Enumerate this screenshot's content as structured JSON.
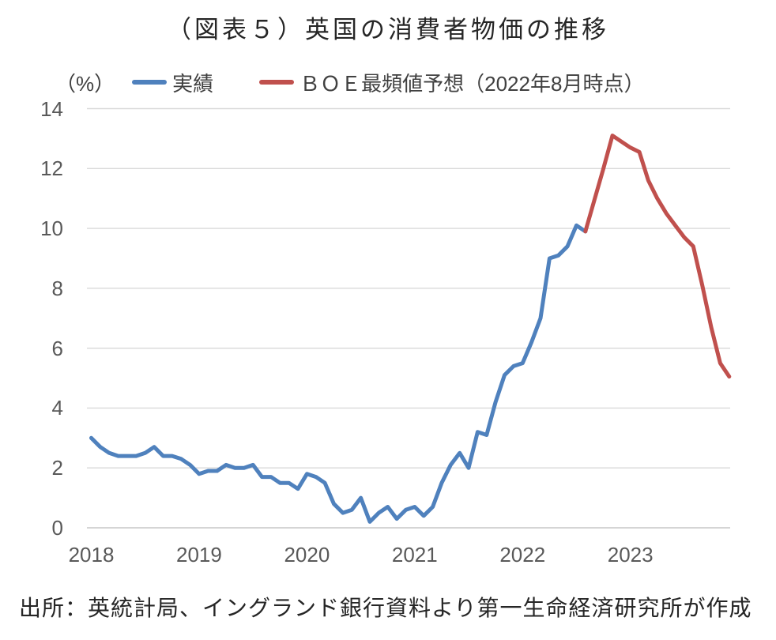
{
  "chart_data": {
    "type": "line",
    "title": "（図表５）英国の消費者物価の推移",
    "unit_label": "（%）",
    "legend_position": "top",
    "grid": true,
    "x_axis": {
      "tick_labels": [
        "2018",
        "2019",
        "2020",
        "2021",
        "2022",
        "2023"
      ],
      "start": "2018-01",
      "end": "2023-12",
      "frequency": "monthly"
    },
    "y_axis": {
      "tick_labels": [
        "14",
        "12",
        "10",
        "8",
        "6",
        "4",
        "2",
        "0"
      ],
      "ylim": [
        0,
        14
      ],
      "tick_step": 2
    },
    "colors": {
      "actual": "#4F81BD",
      "forecast": "#C0504D",
      "grid": "#D9D9D9",
      "axis": "#CFCFCF",
      "tick_text": "#595959"
    },
    "series": [
      {
        "name": "実績",
        "color": "#4F81BD",
        "start": "2018-01",
        "start_index": 0,
        "values": [
          3.0,
          2.7,
          2.5,
          2.4,
          2.4,
          2.4,
          2.5,
          2.7,
          2.4,
          2.4,
          2.3,
          2.1,
          1.8,
          1.9,
          1.9,
          2.1,
          2.0,
          2.0,
          2.1,
          1.7,
          1.7,
          1.5,
          1.5,
          1.3,
          1.8,
          1.7,
          1.5,
          0.8,
          0.5,
          0.6,
          1.0,
          0.2,
          0.5,
          0.7,
          0.3,
          0.6,
          0.7,
          0.4,
          0.7,
          1.5,
          2.1,
          2.5,
          2.0,
          3.2,
          3.1,
          4.2,
          5.1,
          5.4,
          5.5,
          6.2,
          7.0,
          9.0,
          9.1,
          9.4,
          10.1,
          9.9
        ]
      },
      {
        "name": "ＢＯＥ最頻値予想（2022年8月時点）",
        "color": "#C0504D",
        "start": "2022-08",
        "start_index": 55,
        "values": [
          9.9,
          10.95,
          12.0,
          13.1,
          12.9,
          12.7,
          12.55,
          11.6,
          11.0,
          10.5,
          10.1,
          9.7,
          9.4,
          8.1,
          6.7,
          5.5,
          5.05
        ]
      }
    ]
  },
  "footer": {
    "source": "出所：英統計局、イングランド銀行資料より第一生命経済研究所が作成"
  }
}
